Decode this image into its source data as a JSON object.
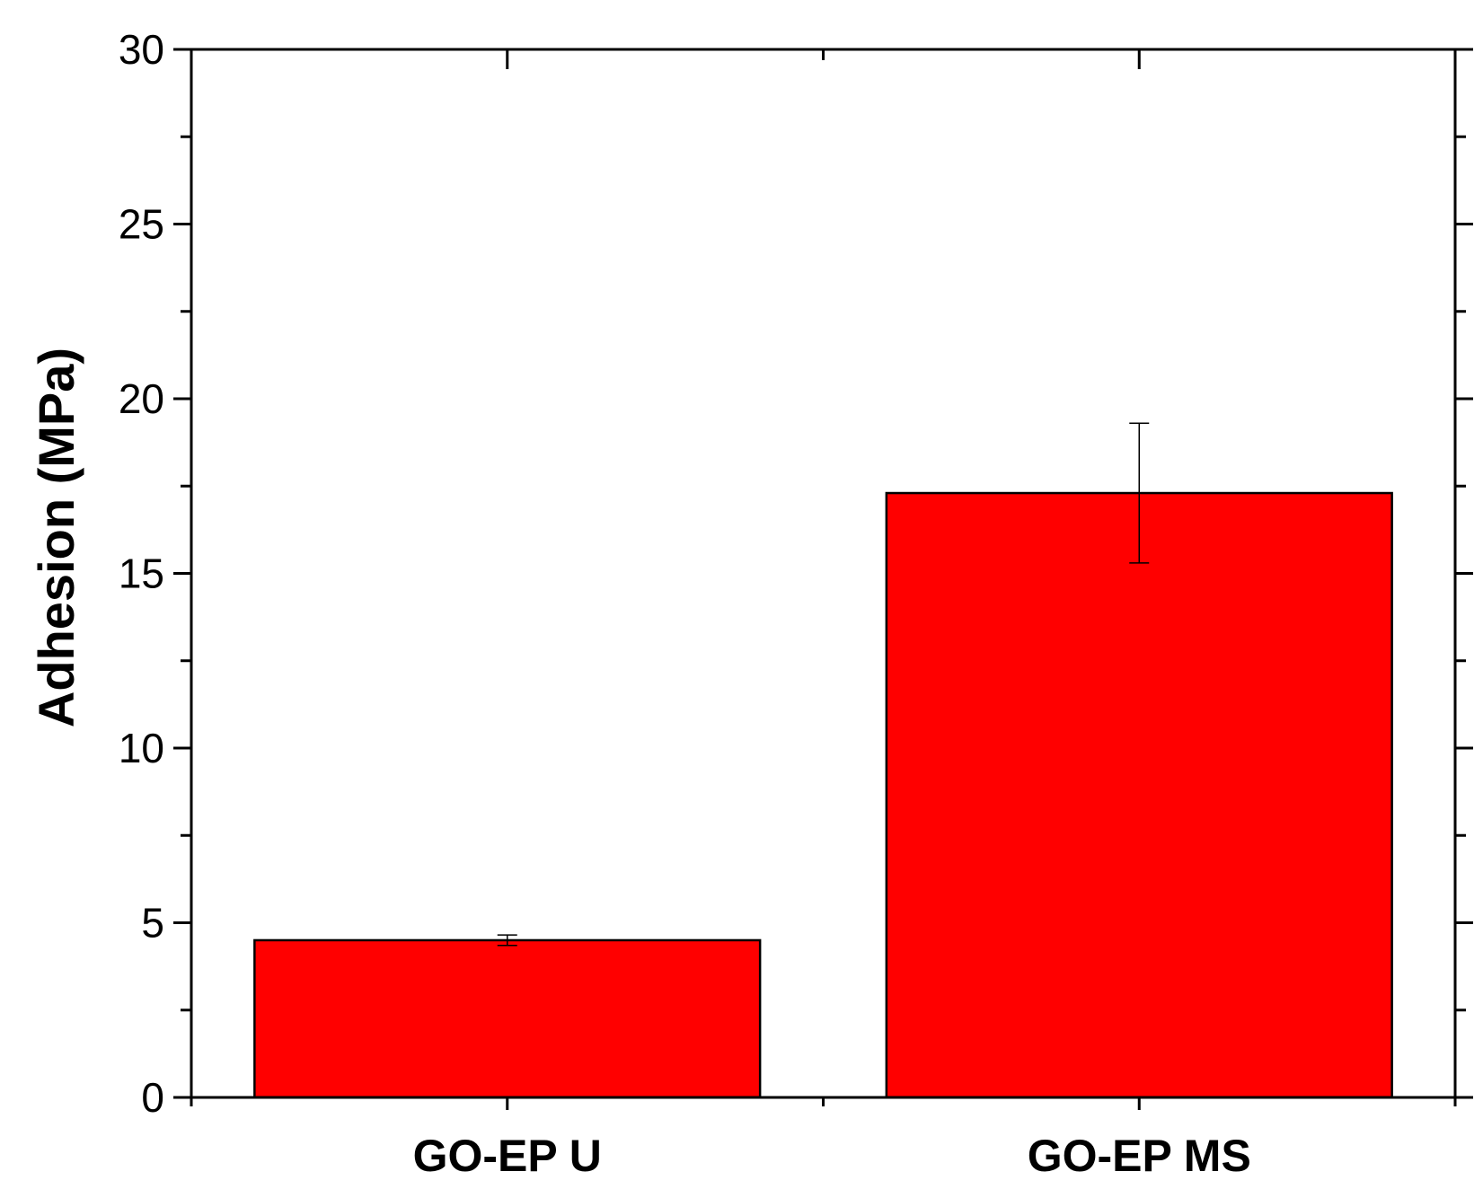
{
  "chart_data": {
    "type": "bar",
    "title": "",
    "xlabel": "",
    "ylabel": "Adhesion (MPa)",
    "categories": [
      "GO-EP U",
      "GO-EP MS"
    ],
    "values": [
      4.5,
      17.3
    ],
    "errors": [
      0.15,
      2.0
    ],
    "ylim": [
      0,
      30
    ],
    "yticks": [
      0,
      5,
      10,
      15,
      20,
      25,
      30
    ],
    "grid": false,
    "legend": "none",
    "colors": {
      "bar": "#ff0000",
      "outline": "#000000"
    }
  }
}
